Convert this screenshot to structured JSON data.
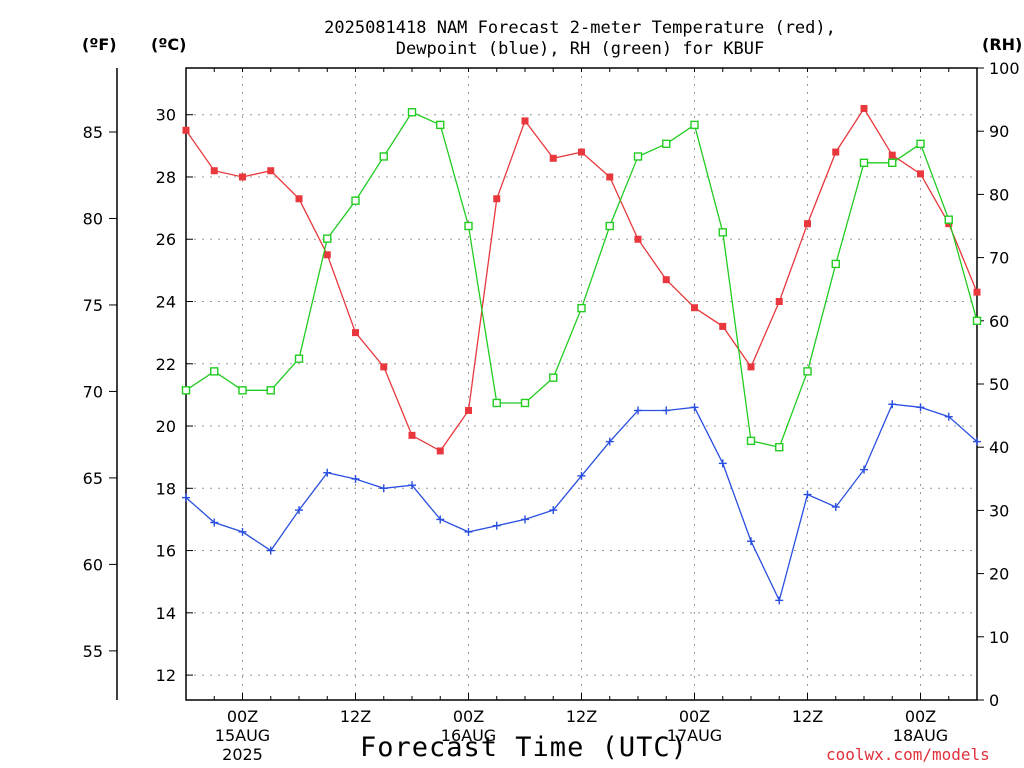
{
  "header": {
    "title_line1": "2025081418 NAM Forecast 2-meter Temperature (red),",
    "title_line2": "Dewpoint (blue), RH (green) for KBUF",
    "unit_f": "(ºF)",
    "unit_c": "(ºC)",
    "unit_rh": "(RH)"
  },
  "footer": {
    "xlabel": "Forecast Time (UTC)",
    "credit": "coolwx.com/models"
  },
  "colors": {
    "temperature": "#e8383d",
    "dewpoint": "#2a4fe0",
    "rh": "#22cc22",
    "grid": "#999999"
  },
  "chart_data": {
    "type": "line",
    "x_unit": "forecast hour",
    "x": [
      0,
      3,
      6,
      9,
      12,
      15,
      18,
      21,
      24,
      27,
      30,
      33,
      36,
      39,
      42,
      45,
      48,
      51,
      54,
      57,
      60,
      63,
      66,
      69,
      72,
      75,
      78,
      81,
      84
    ],
    "xlim": [
      0,
      84
    ],
    "x_ticks": [
      {
        "x": 6,
        "label": "00Z",
        "date": "15AUG",
        "year": "2025"
      },
      {
        "x": 18,
        "label": "12Z",
        "date": "",
        "year": ""
      },
      {
        "x": 30,
        "label": "00Z",
        "date": "16AUG",
        "year": ""
      },
      {
        "x": 42,
        "label": "12Z",
        "date": "",
        "year": ""
      },
      {
        "x": 54,
        "label": "00Z",
        "date": "17AUG",
        "year": ""
      },
      {
        "x": 66,
        "label": "12Z",
        "date": "",
        "year": ""
      },
      {
        "x": 78,
        "label": "00Z",
        "date": "18AUG",
        "year": ""
      }
    ],
    "left_axis_c": {
      "ylim": [
        11.2,
        31.5
      ],
      "ticks": [
        12,
        14,
        16,
        18,
        20,
        22,
        24,
        26,
        28,
        30
      ]
    },
    "left_axis_f": {
      "ticks": [
        55,
        60,
        65,
        70,
        75,
        80,
        85
      ]
    },
    "right_axis_rh": {
      "ylim": [
        0,
        100
      ],
      "ticks": [
        0,
        10,
        20,
        30,
        40,
        50,
        60,
        70,
        80,
        90,
        100
      ]
    },
    "series": [
      {
        "name": "Temperature",
        "axis": "c",
        "marker": "filled-square",
        "values": [
          29.5,
          28.2,
          28.0,
          28.2,
          27.3,
          25.5,
          23.0,
          21.9,
          19.7,
          19.2,
          20.5,
          27.3,
          29.8,
          28.6,
          28.8,
          28.0,
          26.0,
          24.7,
          23.8,
          23.2,
          21.9,
          24.0,
          26.5,
          28.8,
          30.2,
          28.7,
          28.1,
          26.5,
          24.3
        ]
      },
      {
        "name": "Dewpoint",
        "axis": "c",
        "marker": "plus",
        "values": [
          17.7,
          16.9,
          16.6,
          16.0,
          17.3,
          18.5,
          18.3,
          18.0,
          18.1,
          17.0,
          16.6,
          16.8,
          17.0,
          17.3,
          18.4,
          19.5,
          20.5,
          20.5,
          20.6,
          18.8,
          16.3,
          14.4,
          17.8,
          17.4,
          18.6,
          20.7,
          20.6,
          20.3,
          19.5
        ]
      },
      {
        "name": "RH",
        "axis": "rh",
        "marker": "open-square",
        "values": [
          49,
          52,
          49,
          49,
          54,
          73,
          79,
          86,
          93,
          91,
          75,
          47,
          47,
          51,
          62,
          75,
          86,
          88,
          91,
          74,
          41,
          40,
          52,
          69,
          85,
          85,
          88,
          76,
          60
        ]
      }
    ]
  }
}
